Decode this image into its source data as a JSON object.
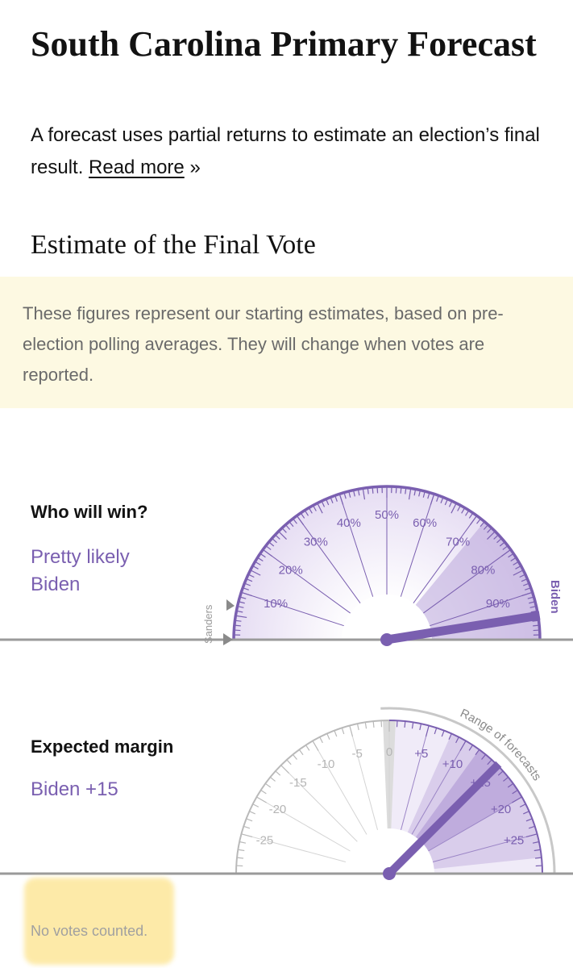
{
  "header": {
    "title": "South Carolina Primary Forecast",
    "subtitle_text": "A forecast uses partial returns to estimate an election’s final result.",
    "read_more_label": "Read more",
    "read_more_suffix": "»"
  },
  "estimate": {
    "section_title": "Estimate of the Final Vote",
    "note": "These figures represent our starting estimates, based on pre-election polling averages. They will change when votes are reported."
  },
  "win_gauge": {
    "label": "Who will win?",
    "verdict_line1": "Pretty likely",
    "verdict_line2": "Biden",
    "left_candidate": "Sanders",
    "right_candidate": "Biden",
    "tick_labels": [
      "10%",
      "20%",
      "30%",
      "40%",
      "50%",
      "60%",
      "70%",
      "80%",
      "90%"
    ],
    "needle_value": 95,
    "accent_color": "#7a5fb0"
  },
  "margin_gauge": {
    "label": "Expected margin",
    "value": "Biden +15",
    "range_label": "Range of forecasts",
    "tick_labels": [
      "-25",
      "-20",
      "-15",
      "-10",
      "-5",
      "0",
      "+5",
      "+10",
      "+15",
      "+20",
      "+25"
    ],
    "needle_value": 15,
    "range_min": -30,
    "range_max": 30
  },
  "footer": {
    "status": "No votes counted."
  }
}
